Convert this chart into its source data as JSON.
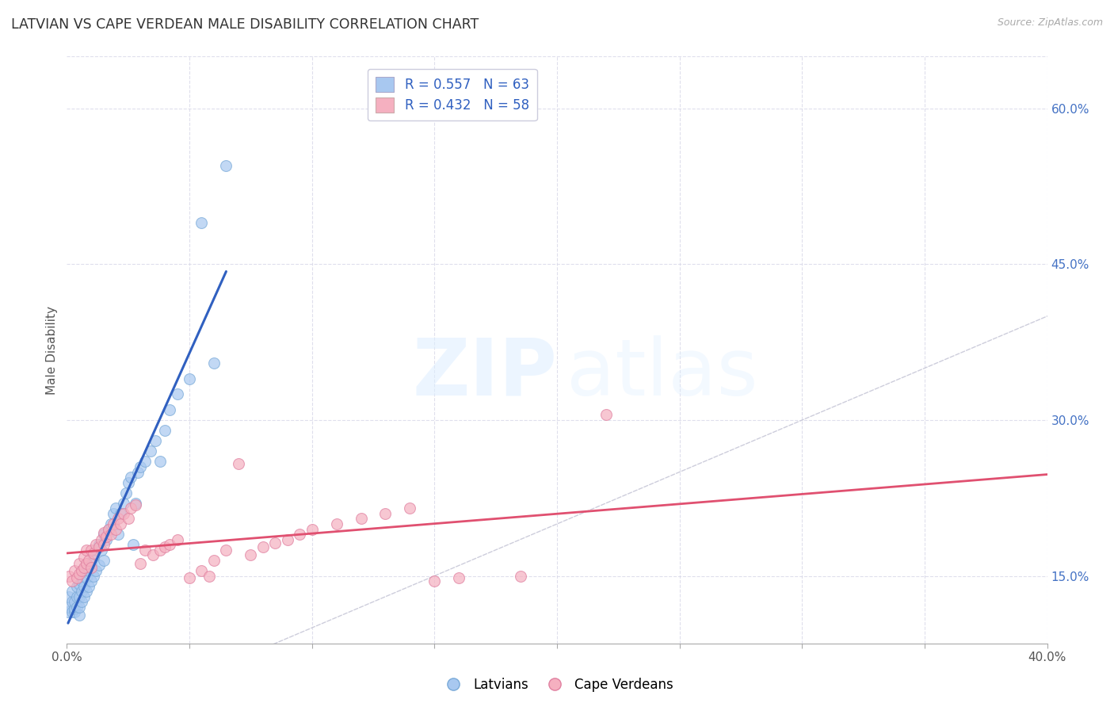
{
  "title": "LATVIAN VS CAPE VERDEAN MALE DISABILITY CORRELATION CHART",
  "source": "Source: ZipAtlas.com",
  "ylabel": "Male Disability",
  "latvian_color": "#a8c8f0",
  "latvian_edge_color": "#7aaad8",
  "cape_verdean_color": "#f5b0c0",
  "cape_verdean_edge_color": "#e080a0",
  "trendline_latvian_color": "#3060c0",
  "trendline_cape_verdean_color": "#e05070",
  "diagonal_color": "#c8c8d8",
  "R_latvian": 0.557,
  "N_latvian": 63,
  "R_cape_verdean": 0.432,
  "N_cape_verdean": 58,
  "legend_text_color": "#3060c0",
  "legend_R_color": "#3060c0",
  "background_color": "#ffffff",
  "grid_color": "#d8d8e8",
  "xlim": [
    0.0,
    0.4
  ],
  "ylim": [
    0.085,
    0.65
  ],
  "x_ticks": [
    0.0,
    0.05,
    0.1,
    0.15,
    0.2,
    0.25,
    0.3,
    0.35,
    0.4
  ],
  "y_ticks_right": [
    0.15,
    0.3,
    0.45,
    0.6
  ],
  "y_tick_labels_right": [
    "15.0%",
    "30.0%",
    "45.0%",
    "60.0%"
  ],
  "latvian_x": [
    0.0005,
    0.001,
    0.001,
    0.002,
    0.002,
    0.002,
    0.003,
    0.003,
    0.003,
    0.004,
    0.004,
    0.004,
    0.005,
    0.005,
    0.005,
    0.005,
    0.006,
    0.006,
    0.006,
    0.007,
    0.007,
    0.007,
    0.008,
    0.008,
    0.009,
    0.009,
    0.01,
    0.01,
    0.011,
    0.011,
    0.012,
    0.012,
    0.013,
    0.013,
    0.014,
    0.015,
    0.015,
    0.016,
    0.017,
    0.018,
    0.019,
    0.02,
    0.021,
    0.022,
    0.023,
    0.024,
    0.025,
    0.026,
    0.027,
    0.028,
    0.029,
    0.03,
    0.032,
    0.034,
    0.036,
    0.038,
    0.04,
    0.042,
    0.045,
    0.05,
    0.055,
    0.06,
    0.065
  ],
  "latvian_y": [
    0.115,
    0.12,
    0.13,
    0.115,
    0.125,
    0.135,
    0.115,
    0.118,
    0.125,
    0.12,
    0.13,
    0.14,
    0.112,
    0.12,
    0.13,
    0.142,
    0.125,
    0.135,
    0.145,
    0.13,
    0.14,
    0.155,
    0.135,
    0.148,
    0.14,
    0.155,
    0.145,
    0.162,
    0.15,
    0.168,
    0.155,
    0.175,
    0.16,
    0.18,
    0.175,
    0.165,
    0.19,
    0.185,
    0.195,
    0.2,
    0.21,
    0.215,
    0.19,
    0.21,
    0.22,
    0.23,
    0.24,
    0.245,
    0.18,
    0.22,
    0.25,
    0.255,
    0.26,
    0.27,
    0.28,
    0.26,
    0.29,
    0.31,
    0.325,
    0.34,
    0.49,
    0.355,
    0.545
  ],
  "cape_verdean_x": [
    0.001,
    0.002,
    0.003,
    0.004,
    0.005,
    0.005,
    0.006,
    0.007,
    0.007,
    0.008,
    0.008,
    0.009,
    0.01,
    0.01,
    0.011,
    0.012,
    0.013,
    0.014,
    0.015,
    0.015,
    0.016,
    0.017,
    0.018,
    0.019,
    0.02,
    0.021,
    0.022,
    0.023,
    0.025,
    0.026,
    0.028,
    0.03,
    0.032,
    0.035,
    0.038,
    0.04,
    0.042,
    0.045,
    0.05,
    0.055,
    0.058,
    0.06,
    0.065,
    0.07,
    0.075,
    0.08,
    0.085,
    0.09,
    0.095,
    0.1,
    0.11,
    0.12,
    0.13,
    0.14,
    0.15,
    0.16,
    0.185,
    0.22
  ],
  "cape_verdean_y": [
    0.15,
    0.145,
    0.155,
    0.148,
    0.152,
    0.162,
    0.155,
    0.158,
    0.168,
    0.162,
    0.175,
    0.165,
    0.158,
    0.175,
    0.172,
    0.18,
    0.178,
    0.185,
    0.18,
    0.192,
    0.188,
    0.195,
    0.19,
    0.2,
    0.195,
    0.205,
    0.2,
    0.21,
    0.205,
    0.215,
    0.218,
    0.162,
    0.175,
    0.17,
    0.175,
    0.178,
    0.18,
    0.185,
    0.148,
    0.155,
    0.15,
    0.165,
    0.175,
    0.258,
    0.17,
    0.178,
    0.182,
    0.185,
    0.19,
    0.195,
    0.2,
    0.205,
    0.21,
    0.215,
    0.145,
    0.148,
    0.15,
    0.305
  ]
}
